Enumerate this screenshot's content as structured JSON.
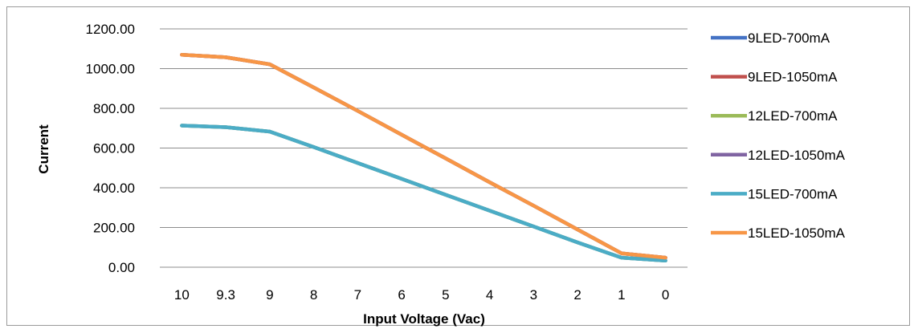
{
  "chart_data": {
    "type": "line",
    "title": "",
    "xlabel": "Input Voltage (Vac)",
    "ylabel": "Current",
    "categories": [
      "10",
      "9.3",
      "9",
      "8",
      "7",
      "6",
      "5",
      "4",
      "3",
      "2",
      "1",
      "0"
    ],
    "ylim": [
      0,
      1200
    ],
    "yticks": [
      "0.00",
      "200.00",
      "400.00",
      "600.00",
      "800.00",
      "1000.00",
      "1200.00"
    ],
    "grid": true,
    "legend_position": "right",
    "series": [
      {
        "name": "9LED-700mA",
        "color": "#4472C4",
        "values": [
          713,
          705,
          683,
          605,
          525,
          445,
          365,
          285,
          205,
          125,
          48,
          33
        ]
      },
      {
        "name": "9LED-1050mA",
        "color": "#C0504D",
        "values": [
          1070,
          1057,
          1022,
          905,
          787,
          667,
          548,
          428,
          310,
          190,
          70,
          48
        ]
      },
      {
        "name": "12LED-700mA",
        "color": "#9BBB59",
        "values": [
          713,
          705,
          683,
          605,
          525,
          445,
          365,
          285,
          205,
          125,
          48,
          33
        ]
      },
      {
        "name": "12LED-1050mA",
        "color": "#8064A2",
        "values": [
          1070,
          1057,
          1022,
          905,
          787,
          667,
          548,
          428,
          310,
          190,
          70,
          48
        ]
      },
      {
        "name": "15LED-700mA",
        "color": "#4BACC6",
        "values": [
          713,
          705,
          683,
          605,
          525,
          445,
          365,
          285,
          205,
          125,
          48,
          33
        ]
      },
      {
        "name": "15LED-1050mA",
        "color": "#F79646",
        "values": [
          1070,
          1057,
          1022,
          905,
          787,
          667,
          548,
          428,
          310,
          190,
          70,
          48
        ]
      }
    ]
  }
}
